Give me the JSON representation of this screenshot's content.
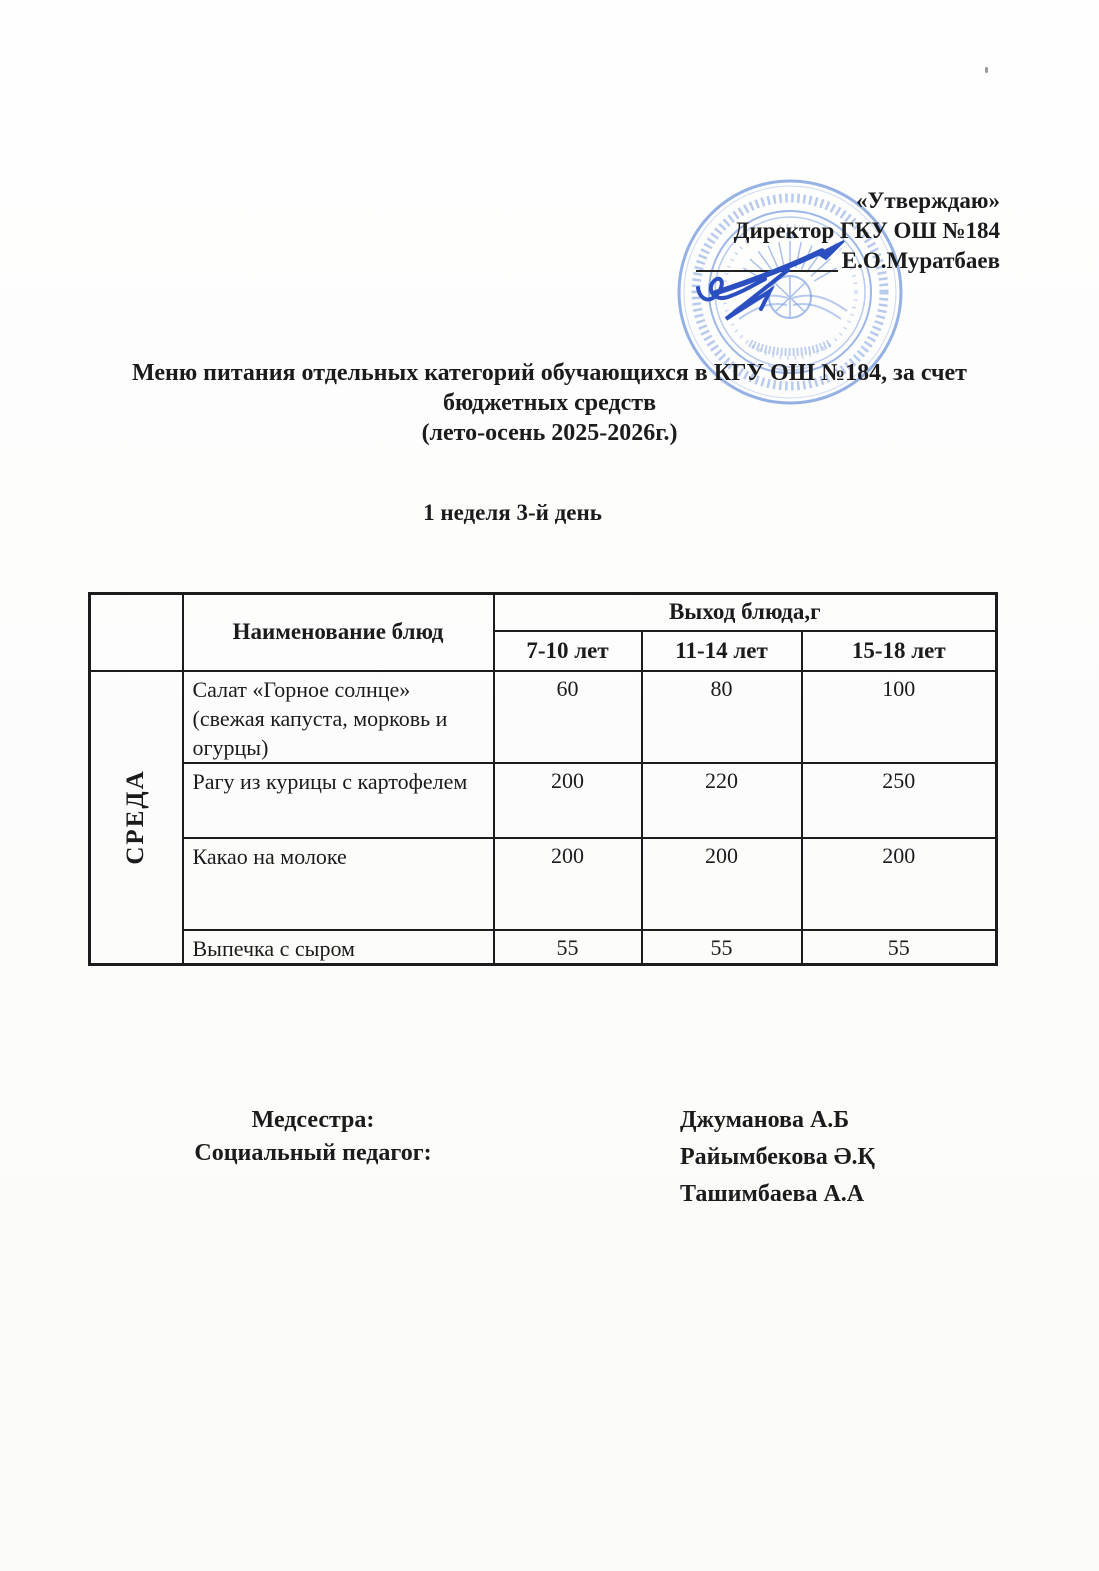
{
  "approval": {
    "quote": "«Утверждаю»",
    "director_line": "Директор ГКУ ОШ №184",
    "director_name": "Е.О.Муратбаев"
  },
  "title": {
    "line1": "Меню питания отдельных категорий обучающихся в КГУ ОШ №184, за счет",
    "line2": "бюджетных средств",
    "line3": "(лето-осень 2025-2026г.)"
  },
  "subtitle": "1 неделя 3-й день",
  "menu_table": {
    "day_label": "СРЕДА",
    "dish_column_header": "Наименование блюд",
    "output_group_header": "Выход блюда,г",
    "age_headers": [
      "7-10 лет",
      "11-14 лет",
      "15-18 лет"
    ],
    "rows": [
      {
        "dish": "Салат «Горное солнце» (свежая капуста, морковь и огурцы)",
        "values": [
          "60",
          "80",
          "100"
        ]
      },
      {
        "dish": "Рагу из курицы с картофелем",
        "values": [
          "200",
          "220",
          "250"
        ]
      },
      {
        "dish": "Какао на молоке",
        "values": [
          "200",
          "200",
          "200"
        ]
      },
      {
        "dish": "Выпечка с сыром",
        "values": [
          "55",
          "55",
          "55"
        ]
      }
    ]
  },
  "signatures": {
    "roles": [
      "Медсестра:",
      "Социальный педагог:"
    ],
    "names": [
      "Джуманова А.Б",
      "Райымбекова Ә.Қ",
      "Ташимбаева А.А"
    ]
  },
  "stamp": {
    "ring_color": "#5b87d5",
    "ink_color": "#2b4fc0"
  }
}
